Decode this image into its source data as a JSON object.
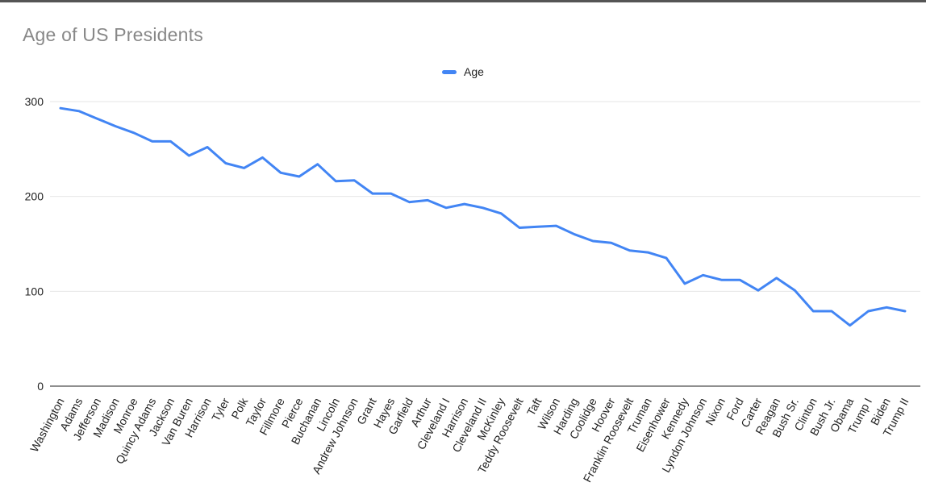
{
  "chart": {
    "title": "Age of US Presidents",
    "legend": {
      "position": "top",
      "items": [
        {
          "label": "Age",
          "color": "#4285f4"
        }
      ]
    }
  },
  "colors": {
    "series_line": "#4285f4",
    "title_text": "#888888",
    "axis_label_text": "#222222",
    "gridline": "#e6e6e6",
    "axis_line": "#8f8f8f"
  },
  "chart_data": {
    "type": "line",
    "title": "Age of US Presidents",
    "xlabel": "",
    "ylabel": "",
    "ylim": [
      0,
      300
    ],
    "yticks": [
      0,
      100,
      200,
      300
    ],
    "grid": true,
    "legend_position": "top",
    "categories": [
      "Washington",
      "Adams",
      "Jefferson",
      "Madison",
      "Monroe",
      "Quincy Adams",
      "Jackson",
      "Van Buren",
      "Harrison",
      "Tyler",
      "Polk",
      "Taylor",
      "Fillmore",
      "Pierce",
      "Buchanan",
      "Lincoln",
      "Andrew Johnson",
      "Grant",
      "Hayes",
      "Garfield",
      "Arthur",
      "Cleveland I",
      "Harrison",
      "Cleveland II",
      "McKinley",
      "Teddy Roosevelt",
      "Taft",
      "Wilson",
      "Harding",
      "Coolidge",
      "Hoover",
      "Franklin Roosevelt",
      "Truman",
      "Eisenhower",
      "Kennedy",
      "Lyndon Johnson",
      "Nixon",
      "Ford",
      "Carter",
      "Reagan",
      "Bush Sr.",
      "Clinton",
      "Bush Jr.",
      "Obama",
      "Trump I",
      "Biden",
      "Trump II"
    ],
    "series": [
      {
        "name": "Age",
        "color": "#4285f4",
        "values": [
          293,
          290,
          282,
          274,
          267,
          258,
          258,
          243,
          252,
          235,
          230,
          241,
          225,
          221,
          234,
          216,
          217,
          203,
          203,
          194,
          196,
          188,
          192,
          188,
          182,
          167,
          168,
          169,
          160,
          153,
          151,
          143,
          141,
          135,
          108,
          117,
          112,
          112,
          101,
          114,
          101,
          79,
          79,
          64,
          79,
          83,
          79
        ]
      }
    ]
  }
}
